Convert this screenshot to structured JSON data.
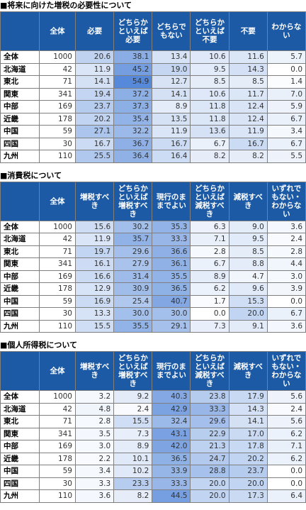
{
  "tables": [
    {
      "title": "■将来に向けた増税の必要性について",
      "headers": [
        "全体",
        "必要",
        "どちらかといえば必要",
        "どちらでもない",
        "どちらかといえば不要",
        "不要",
        "わからない"
      ],
      "rows": [
        {
          "label": "全体",
          "cells": [
            "1000",
            "20.6",
            "38.1",
            "13.4",
            "10.6",
            "11.6",
            "5.7"
          ]
        },
        {
          "label": "北海道",
          "cells": [
            "42",
            "11.9",
            "45.2",
            "19.0",
            "9.5",
            "14.3",
            "0.0"
          ]
        },
        {
          "label": "東北",
          "cells": [
            "71",
            "14.1",
            "54.9",
            "12.7",
            "8.5",
            "8.5",
            "1.4"
          ]
        },
        {
          "label": "関東",
          "cells": [
            "341",
            "19.4",
            "37.2",
            "14.1",
            "10.6",
            "11.7",
            "7.0"
          ]
        },
        {
          "label": "中部",
          "cells": [
            "169",
            "23.7",
            "37.3",
            "8.9",
            "11.8",
            "12.4",
            "5.9"
          ]
        },
        {
          "label": "近畿",
          "cells": [
            "178",
            "20.2",
            "35.4",
            "13.5",
            "11.8",
            "12.4",
            "6.7"
          ]
        },
        {
          "label": "中国",
          "cells": [
            "59",
            "27.1",
            "32.2",
            "11.9",
            "13.6",
            "11.9",
            "3.4"
          ]
        },
        {
          "label": "四国",
          "cells": [
            "30",
            "16.7",
            "36.7",
            "16.7",
            "6.7",
            "16.7",
            "6.7"
          ]
        },
        {
          "label": "九州",
          "cells": [
            "110",
            "25.5",
            "36.4",
            "16.4",
            "8.2",
            "8.2",
            "5.5"
          ]
        }
      ]
    },
    {
      "title": "■消費税について",
      "headers": [
        "全体",
        "増税すべき",
        "どちらかといえば増税すべき",
        "現行のままでよい",
        "どちらかといえば減税すべき",
        "減税すべき",
        "いずれでもない・わからない"
      ],
      "rows": [
        {
          "label": "全体",
          "cells": [
            "1000",
            "15.6",
            "30.2",
            "35.3",
            "6.3",
            "9.0",
            "3.6"
          ]
        },
        {
          "label": "北海道",
          "cells": [
            "42",
            "11.9",
            "35.7",
            "33.3",
            "7.1",
            "9.5",
            "2.4"
          ]
        },
        {
          "label": "東北",
          "cells": [
            "71",
            "19.7",
            "29.6",
            "36.6",
            "2.8",
            "8.5",
            "2.8"
          ]
        },
        {
          "label": "関東",
          "cells": [
            "341",
            "16.1",
            "27.9",
            "36.1",
            "6.7",
            "8.8",
            "4.4"
          ]
        },
        {
          "label": "中部",
          "cells": [
            "169",
            "16.6",
            "31.4",
            "35.5",
            "8.9",
            "4.7",
            "3.0"
          ]
        },
        {
          "label": "近畿",
          "cells": [
            "178",
            "12.9",
            "30.9",
            "36.5",
            "6.2",
            "9.6",
            "3.9"
          ]
        },
        {
          "label": "中国",
          "cells": [
            "59",
            "16.9",
            "25.4",
            "40.7",
            "1.7",
            "15.3",
            "0.0"
          ]
        },
        {
          "label": "四国",
          "cells": [
            "30",
            "13.3",
            "30.0",
            "30.0",
            "0.0",
            "20.0",
            "6.7"
          ]
        },
        {
          "label": "九州",
          "cells": [
            "110",
            "15.5",
            "35.5",
            "29.1",
            "7.3",
            "9.1",
            "3.6"
          ]
        }
      ]
    },
    {
      "title": "■個人所得税について",
      "headers": [
        "全体",
        "増税すべき",
        "どちらかといえば増税すべき",
        "現行のままでよい",
        "どちらかといえば減税すべき",
        "減税すべき",
        "いずれでもない・わからない"
      ],
      "rows": [
        {
          "label": "全体",
          "cells": [
            "1000",
            "3.2",
            "9.2",
            "40.3",
            "23.8",
            "17.9",
            "5.6"
          ]
        },
        {
          "label": "北海道",
          "cells": [
            "42",
            "4.8",
            "2.4",
            "42.9",
            "33.3",
            "14.3",
            "2.4"
          ]
        },
        {
          "label": "東北",
          "cells": [
            "71",
            "2.8",
            "15.5",
            "32.4",
            "29.6",
            "14.1",
            "5.6"
          ]
        },
        {
          "label": "関東",
          "cells": [
            "341",
            "3.5",
            "7.3",
            "43.1",
            "22.9",
            "17.0",
            "6.2"
          ]
        },
        {
          "label": "中部",
          "cells": [
            "169",
            "3.0",
            "8.9",
            "42.0",
            "21.3",
            "17.8",
            "7.1"
          ]
        },
        {
          "label": "近畿",
          "cells": [
            "178",
            "2.2",
            "10.1",
            "36.5",
            "24.7",
            "20.2",
            "6.2"
          ]
        },
        {
          "label": "中国",
          "cells": [
            "59",
            "3.4",
            "10.2",
            "33.9",
            "28.8",
            "23.7",
            "0.0"
          ]
        },
        {
          "label": "四国",
          "cells": [
            "30",
            "3.3",
            "23.3",
            "33.3",
            "20.0",
            "20.0",
            "0.0"
          ]
        },
        {
          "label": "九州",
          "cells": [
            "110",
            "3.6",
            "8.2",
            "44.5",
            "20.0",
            "17.3",
            "6.4"
          ]
        }
      ]
    }
  ]
}
